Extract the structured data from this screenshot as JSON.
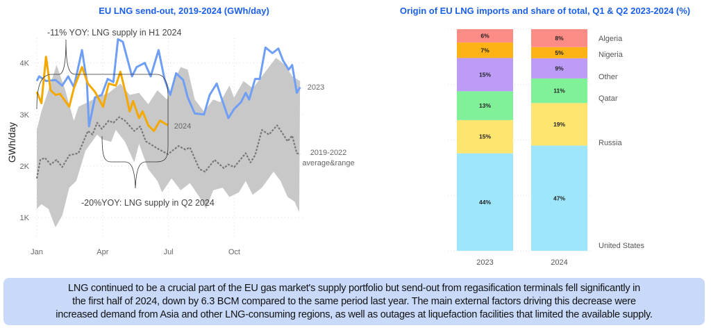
{
  "chart_data": [
    {
      "type": "line",
      "title": "EU LNG send-out, 2019-2024 (GWh/day)",
      "ylabel": "GWh/day",
      "xlabel": "",
      "x_unit": "month of year (0 = 1 Jan, 12 = 31 Dec)",
      "xticks": [
        {
          "label": "Jan",
          "value": 0
        },
        {
          "label": "Apr",
          "value": 3
        },
        {
          "label": "Jul",
          "value": 6
        },
        {
          "label": "Oct",
          "value": 9
        }
      ],
      "yticks": [
        {
          "label": "1K",
          "value": 1000
        },
        {
          "label": "2K",
          "value": 2000
        },
        {
          "label": "3K",
          "value": 3000
        },
        {
          "label": "4K",
          "value": 4000
        }
      ],
      "ylim": [
        450,
        4800
      ],
      "xlim": [
        0,
        12
      ],
      "grid": "dotted",
      "colors": {
        "2023": "#6e9ef5",
        "2024": "#f5a800",
        "average": "#777777",
        "range": "#c9c8c8"
      },
      "series": [
        {
          "name": "2023",
          "x": [
            0,
            0.11,
            0.42,
            0.85,
            1.16,
            1.43,
            1.69,
            2.06,
            2.28,
            2.38,
            2.65,
            2.96,
            3.23,
            3.49,
            3.7,
            3.92,
            4.34,
            4.55,
            4.92,
            5.19,
            5.55,
            5.82,
            6.08,
            6.35,
            6.67,
            6.88,
            7.2,
            7.62,
            7.88,
            8.2,
            8.41,
            8.73,
            9.0,
            9.31,
            9.52,
            9.68,
            9.95,
            10.16,
            10.42,
            10.74,
            11.01,
            11.22,
            11.48,
            11.64,
            11.85,
            12.0
          ],
          "values": [
            3650,
            3740,
            3650,
            3670,
            3560,
            3740,
            3530,
            4250,
            3650,
            2770,
            3330,
            3380,
            3690,
            3630,
            4460,
            4410,
            3740,
            3920,
            4000,
            3740,
            4250,
            3690,
            3380,
            3800,
            3670,
            3330,
            3020,
            3000,
            3380,
            3600,
            3330,
            2930,
            3110,
            3240,
            3420,
            3290,
            3690,
            3690,
            4300,
            4190,
            4280,
            4050,
            3870,
            3960,
            3420,
            3530
          ]
        },
        {
          "name": "2024",
          "x": [
            0,
            0.21,
            0.42,
            0.63,
            0.85,
            1.06,
            1.48,
            1.69,
            2.06,
            2.33,
            2.65,
            3.02,
            3.28,
            3.6,
            3.81,
            4.07,
            4.23,
            4.39,
            4.66,
            4.82,
            5.08,
            5.34,
            5.61,
            5.98
          ],
          "values": [
            3440,
            3220,
            4120,
            3470,
            3380,
            3400,
            3150,
            3510,
            3920,
            3600,
            3440,
            3150,
            3600,
            3560,
            3830,
            3380,
            3060,
            3260,
            2930,
            3060,
            2790,
            2680,
            2880,
            2790
          ]
        },
        {
          "name": "2019-2022 average",
          "x": [
            0,
            0.16,
            0.37,
            0.63,
            0.9,
            1.16,
            1.48,
            1.9,
            2.33,
            2.54,
            2.75,
            2.96,
            3.28,
            3.49,
            3.76,
            4.02,
            4.44,
            4.71,
            4.97,
            5.5,
            5.98,
            6.46,
            6.77,
            6.98,
            7.41,
            7.67,
            8.1,
            8.52,
            8.73,
            9.0,
            9.52,
            9.74,
            9.95,
            10.26,
            10.58,
            10.95,
            11.16,
            11.43,
            11.64,
            11.85,
            12.0
          ],
          "values": [
            1760,
            2120,
            2160,
            2030,
            2120,
            1980,
            2210,
            2250,
            2680,
            2610,
            2840,
            2720,
            2880,
            2840,
            2950,
            2880,
            2680,
            2770,
            2480,
            2340,
            2230,
            2390,
            2320,
            2360,
            1940,
            1890,
            2120,
            1960,
            2030,
            1980,
            2250,
            2070,
            2210,
            2700,
            2610,
            2790,
            2660,
            2480,
            2590,
            2250,
            2230
          ]
        },
        {
          "name": "2019-2022 range upper",
          "x": [
            0,
            0.21,
            0.63,
            0.9,
            1.27,
            1.69,
            1.9,
            2.33,
            2.75,
            3.28,
            3.81,
            4.23,
            4.66,
            5.08,
            5.5,
            5.93,
            6.35,
            6.56,
            6.88,
            7.2,
            7.62,
            8.04,
            8.36,
            8.78,
            8.99,
            9.42,
            9.84,
            10.26,
            10.9,
            11.32,
            11.64,
            12.0
          ],
          "values": [
            2700,
            3060,
            3600,
            3960,
            3510,
            2880,
            3150,
            3240,
            3330,
            3420,
            3600,
            3380,
            3420,
            3200,
            3470,
            3290,
            3740,
            3920,
            3870,
            3290,
            3060,
            3290,
            3240,
            3560,
            3330,
            3650,
            3510,
            3740,
            4100,
            3960,
            3740,
            3650
          ]
        },
        {
          "name": "2019-2022 range lower",
          "x": [
            0,
            0.21,
            0.53,
            0.85,
            1.16,
            1.48,
            1.8,
            2.22,
            2.75,
            2.96,
            3.39,
            3.6,
            4.02,
            4.44,
            4.66,
            5.08,
            5.5,
            5.71,
            6.14,
            6.56,
            6.98,
            7.41,
            7.72,
            8.04,
            8.47,
            8.78,
            9.21,
            9.52,
            9.84,
            10.26,
            10.79,
            11.11,
            11.43,
            11.75,
            11.96
          ],
          "values": [
            1170,
            1260,
            1170,
            810,
            1040,
            1580,
            1710,
            2300,
            2610,
            2520,
            2470,
            2700,
            2470,
            2070,
            2430,
            1940,
            1710,
            1490,
            1760,
            1530,
            1670,
            1400,
            1170,
            1530,
            1580,
            1400,
            1490,
            1710,
            1440,
            1580,
            1890,
            1710,
            1400,
            1310,
            1100
          ]
        }
      ],
      "labels": {
        "s2023": "2023",
        "s2024": "2024",
        "avg1": "2019-2022",
        "avg2": "average&range"
      },
      "annotations": [
        "-11% YOY: LNG supply in H1 2024",
        "-20%YOY: LNG supply in Q2 2024"
      ]
    },
    {
      "type": "bar",
      "stacked": true,
      "title": "Origin of EU LNG imports and share of total, Q1 & Q2 2023-2024 (%)",
      "categories": [
        "2023",
        "2024"
      ],
      "series": [
        {
          "name": "United States",
          "color": "#9ee6fb",
          "values": [
            44,
            47
          ]
        },
        {
          "name": "Russia",
          "color": "#fde56f",
          "values": [
            15,
            19
          ]
        },
        {
          "name": "Qatar",
          "color": "#80f099",
          "values": [
            13,
            11
          ]
        },
        {
          "name": "Other",
          "color": "#bd9cf8",
          "values": [
            15,
            9
          ]
        },
        {
          "name": "Nigeria",
          "color": "#fdb315",
          "values": [
            7,
            5
          ]
        },
        {
          "name": "Algeria",
          "color": "#fd8b86",
          "values": [
            6,
            8
          ]
        }
      ],
      "data_labels": [
        [
          "44%",
          "15%",
          "13%",
          "15%",
          "7%",
          "6%"
        ],
        [
          "47%",
          "19%",
          "11%",
          "9%",
          "5%",
          "8%"
        ]
      ]
    }
  ],
  "note": {
    "lines": [
      "LNG continued to be a crucial part of the EU gas market's supply portfolio but send-out from regasification terminals fell significantly in",
      "the first half of 2024, down by 6.3 BCM compared to the same period last year. The main external factors driving this decrease were",
      "increased demand from Asia and other LNG-consuming regions, as well as outages at liquefaction facilities that limited the available supply."
    ]
  }
}
